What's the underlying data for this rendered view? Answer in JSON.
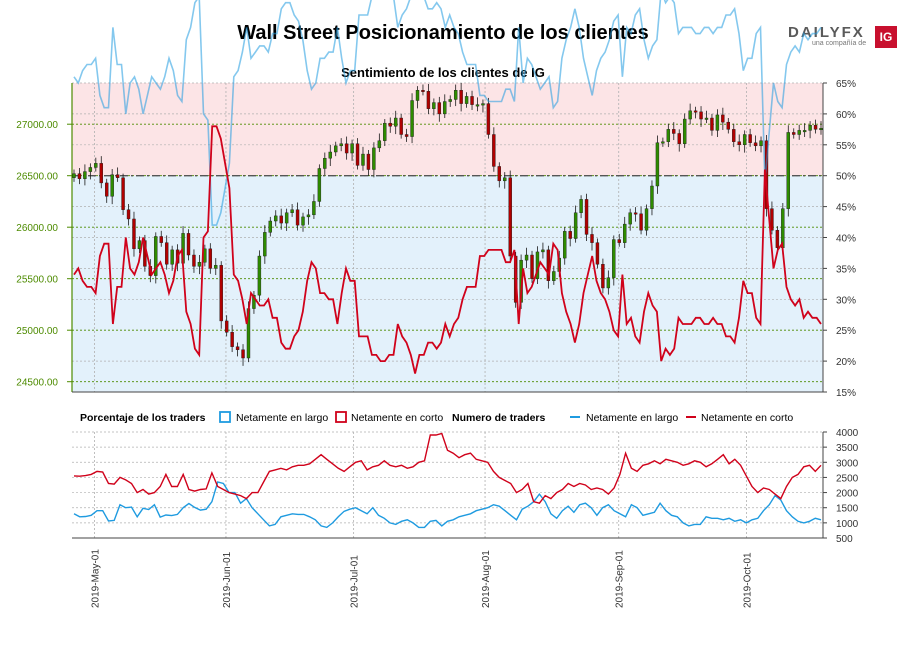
{
  "title": "Wall Street Posicionamiento de los clientes",
  "logo": {
    "brand": "DAILYFX",
    "tagline": "una compañía de",
    "badge": "IG"
  },
  "colors": {
    "up_candle": "#2e8b00",
    "down_candle": "#b00000",
    "long": "#1f9be0",
    "short": "#d0021b",
    "bg_short": "#fce4e6",
    "bg_long": "#e3f1fb",
    "left_axis": "#4d8b00"
  },
  "chart_data": [
    {
      "type": "line",
      "title": "Sentimiento de los clientes de IG",
      "left_axis": {
        "label": "",
        "ticks": [
          "24500.00",
          "25000.00",
          "25500.00",
          "26000.00",
          "26500.00",
          "27000.00"
        ],
        "ylim": [
          24400,
          27400
        ]
      },
      "right_axis": {
        "label": "",
        "ticks": [
          "15%",
          "20%",
          "25%",
          "30%",
          "35%",
          "40%",
          "45%",
          "50%",
          "55%",
          "60%",
          "65%"
        ],
        "ylim": [
          15,
          65
        ]
      },
      "x_ticks": [
        "2019-May-01",
        "2019-Jun-01",
        "2019-Jul-01",
        "2019-Aug-01",
        "2019-Sep-01",
        "2019-Oct-01"
      ],
      "price_close": [
        26520,
        26470,
        26540,
        26580,
        26620,
        26430,
        26300,
        26510,
        26480,
        26170,
        26080,
        25790,
        25870,
        25620,
        25530,
        25910,
        25850,
        25640,
        25780,
        25650,
        25940,
        25730,
        25620,
        25660,
        25790,
        25600,
        25630,
        25090,
        24980,
        24840,
        24810,
        24730,
        25210,
        25340,
        25720,
        25950,
        26060,
        26110,
        26040,
        26140,
        26170,
        26020,
        26100,
        26120,
        26250,
        26570,
        26670,
        26730,
        26790,
        26810,
        26720,
        26810,
        26600,
        26710,
        26560,
        26770,
        26840,
        27010,
        26980,
        27060,
        26900,
        26880,
        27230,
        27330,
        27320,
        27150,
        27210,
        27100,
        27220,
        27240,
        27330,
        27200,
        27270,
        27190,
        27190,
        27200,
        26900,
        26590,
        26450,
        26480,
        25720,
        25270,
        25680,
        25730,
        25500,
        25760,
        25780,
        25480,
        25570,
        25700,
        25960,
        25890,
        26140,
        26270,
        25930,
        25850,
        25640,
        25410,
        25510,
        25880,
        25850,
        26030,
        26140,
        26130,
        25970,
        26180,
        26400,
        26820,
        26830,
        26950,
        26910,
        26810,
        27050,
        27130,
        27120,
        27050,
        27060,
        26940,
        27090,
        27020,
        26950,
        26830,
        26800,
        26900,
        26820,
        26790,
        26840,
        26180,
        25970,
        25800,
        26180,
        26920,
        26900,
        26940,
        26940,
        26990,
        26950,
        26960
      ],
      "short_pct": [
        34,
        35,
        33,
        32,
        32,
        31,
        37,
        39,
        39,
        26,
        32,
        32,
        40,
        35,
        34,
        36,
        40,
        37,
        34,
        35,
        36,
        34,
        31,
        33,
        37,
        38,
        28,
        26,
        22,
        21,
        40,
        41,
        58,
        58,
        56,
        52,
        48,
        34,
        33,
        30,
        26,
        31,
        30,
        29,
        29,
        30,
        27,
        27,
        23,
        22,
        22,
        24,
        25,
        28,
        33,
        36,
        35,
        31,
        31,
        30,
        30,
        26,
        31,
        35,
        33,
        33,
        24,
        24,
        24,
        21,
        21,
        20,
        20,
        21,
        21,
        26,
        24,
        23,
        21,
        18,
        21,
        21,
        23,
        23,
        22,
        23,
        26,
        24,
        26,
        27,
        30,
        32,
        32,
        32,
        37,
        37,
        38,
        38,
        38,
        38,
        36,
        36,
        38,
        26,
        35,
        31,
        32,
        34,
        36,
        35,
        34,
        39,
        38,
        31,
        28,
        26,
        23,
        26,
        31,
        34,
        37,
        33,
        31,
        30,
        28,
        25,
        24,
        34,
        26,
        27,
        24,
        23,
        28,
        31,
        29,
        28,
        20,
        22,
        21,
        22,
        27,
        26,
        26,
        26,
        27,
        27,
        26,
        26,
        27,
        26,
        26,
        24,
        24,
        23,
        27,
        33,
        31,
        31,
        27,
        26,
        51,
        43,
        35,
        38,
        39,
        32,
        30,
        29,
        30,
        27,
        28,
        27,
        27,
        26
      ],
      "sentiment_crossings_note": "",
      "series": [
        {
          "name": "Netamente en largo",
          "role": "long"
        },
        {
          "name": "Netamente en corto",
          "role": "short"
        }
      ]
    },
    {
      "type": "line",
      "title": "Numero de traders",
      "y_ticks": [
        "500",
        "1000",
        "1500",
        "2000",
        "2500",
        "3000",
        "3500",
        "4000"
      ],
      "ylim": [
        500,
        4000
      ],
      "long_traders": [
        1300,
        1200,
        1210,
        1250,
        1400,
        1400,
        1060,
        1080,
        1600,
        1500,
        1520,
        1200,
        1480,
        1440,
        1600,
        1190,
        1260,
        1240,
        1280,
        1500,
        1640,
        1510,
        1420,
        1450,
        1700,
        2350,
        2300,
        2000,
        2000,
        1650,
        1800,
        1500,
        1300,
        1100,
        900,
        950,
        1200,
        1250,
        1300,
        1280,
        1280,
        1200,
        1100,
        900,
        850,
        1000,
        1200,
        1380,
        1450,
        1500,
        1400,
        1300,
        1500,
        1250,
        1150,
        1000,
        950,
        1050,
        1100,
        1000,
        850,
        850,
        1050,
        1080,
        900,
        1050,
        1100,
        1200,
        1250,
        1300,
        1400,
        1450,
        1500,
        1600,
        1550,
        1400,
        1250,
        1100,
        1450,
        1550,
        1700,
        1950,
        1700,
        1300,
        1150,
        1400,
        1550,
        1350,
        1600,
        1650,
        1500,
        1250,
        1500,
        1600,
        1400,
        1300,
        1200,
        1600,
        1500,
        1250,
        1300,
        1350,
        1650,
        1400,
        1250,
        1200,
        1000,
        900,
        950,
        950,
        1200,
        1150,
        1150,
        1100,
        1150,
        1050,
        1100,
        1000,
        1100,
        1150,
        1400,
        1600,
        1900,
        1750,
        1400,
        1200,
        1050,
        1000,
        1050,
        1150,
        1100
      ],
      "short_traders": [
        2550,
        2540,
        2560,
        2600,
        2700,
        2680,
        2300,
        2280,
        2500,
        2420,
        2300,
        2000,
        2100,
        1950,
        2000,
        2200,
        2600,
        2200,
        2200,
        2600,
        2100,
        2050,
        2100,
        2120,
        2650,
        2200,
        2100,
        2000,
        1950,
        1900,
        1800,
        2000,
        2000,
        2350,
        2700,
        2750,
        2800,
        2750,
        2850,
        2900,
        2900,
        2950,
        3100,
        3250,
        3100,
        2950,
        2800,
        2700,
        2850,
        3000,
        3050,
        2750,
        2850,
        2900,
        3050,
        2900,
        2850,
        2900,
        2800,
        2850,
        3000,
        3050,
        3900,
        3900,
        3950,
        3400,
        3300,
        3150,
        3250,
        3300,
        3100,
        3050,
        3000,
        2700,
        2500,
        2400,
        2300,
        2000,
        2100,
        2300,
        1700,
        1650,
        1900,
        1800,
        2000,
        2100,
        2300,
        2200,
        2300,
        2250,
        2100,
        2150,
        2100,
        1950,
        2150,
        2600,
        3300,
        2800,
        2700,
        2900,
        2950,
        3050,
        2950,
        3100,
        3050,
        3000,
        2900,
        2950,
        3050,
        3000,
        2850,
        2950,
        3100,
        3250,
        2950,
        3100,
        2900,
        2550,
        2200,
        2000,
        2150,
        2100,
        1950,
        1800,
        2200,
        2500,
        2600,
        2850,
        2900,
        2700,
        2900
      ]
    }
  ],
  "legend": {
    "pct_title": "Porcentaje de los traders",
    "pct_long": "Netamente en largo",
    "pct_short": "Netamente en corto",
    "num_title": "Numero de traders",
    "num_long": "Netamente en largo",
    "num_short": "Netamente en corto"
  }
}
